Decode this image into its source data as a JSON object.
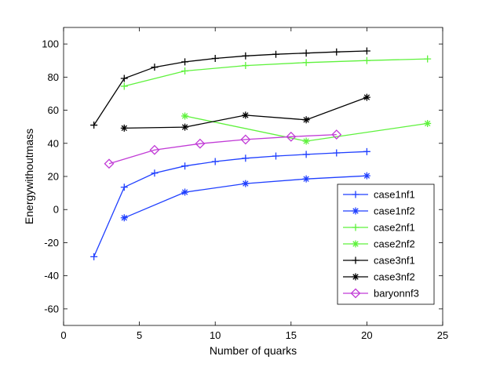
{
  "chart_data": {
    "type": "line",
    "title": "",
    "xlabel": "Number of quarks",
    "ylabel": "Energywithoutmass",
    "xlim": [
      0,
      25
    ],
    "ylim": [
      -70,
      110
    ],
    "xticks": [
      0,
      5,
      10,
      15,
      20,
      25
    ],
    "yticks": [
      -60,
      -40,
      -20,
      0,
      20,
      40,
      60,
      80,
      100
    ],
    "grid": false,
    "legend_position": "bottom-right",
    "series": [
      {
        "name": "case1nf1",
        "color": "#1f3fff",
        "marker": "plus",
        "x": [
          2,
          4,
          6,
          8,
          10,
          12,
          14,
          16,
          18,
          20
        ],
        "y": [
          -28.5,
          13.5,
          22,
          26.3,
          29,
          31,
          32.3,
          33.3,
          34.2,
          35
        ]
      },
      {
        "name": "case1nf2",
        "color": "#1f3fff",
        "marker": "asterisk",
        "x": [
          4,
          8,
          12,
          16,
          20
        ],
        "y": [
          -5,
          10.5,
          15.7,
          18.5,
          20.4
        ]
      },
      {
        "name": "case2nf1",
        "color": "#5ef23c",
        "marker": "plus",
        "x": [
          4,
          8,
          12,
          16,
          20,
          24
        ],
        "y": [
          74.5,
          83.7,
          87,
          88.8,
          90,
          91
        ]
      },
      {
        "name": "case2nf2",
        "color": "#5ef23c",
        "marker": "asterisk",
        "x": [
          8,
          16,
          24
        ],
        "y": [
          56.5,
          41.3,
          52
        ]
      },
      {
        "name": "case3nf1",
        "color": "#000000",
        "marker": "plus",
        "x": [
          2,
          4,
          6,
          8,
          10,
          12,
          14,
          16,
          18,
          20
        ],
        "y": [
          51,
          79.2,
          86,
          89.2,
          91.3,
          92.8,
          93.8,
          94.5,
          95.2,
          95.8
        ]
      },
      {
        "name": "case3nf2",
        "color": "#000000",
        "marker": "asterisk",
        "x": [
          4,
          8,
          12,
          16,
          20
        ],
        "y": [
          49.2,
          49.8,
          57,
          54.2,
          67.8
        ]
      },
      {
        "name": "baryonnf3",
        "color": "#c13bd6",
        "marker": "diamond",
        "x": [
          3,
          6,
          9,
          12,
          15,
          18
        ],
        "y": [
          27.7,
          36,
          39.8,
          42.3,
          44,
          45.3
        ]
      }
    ]
  }
}
